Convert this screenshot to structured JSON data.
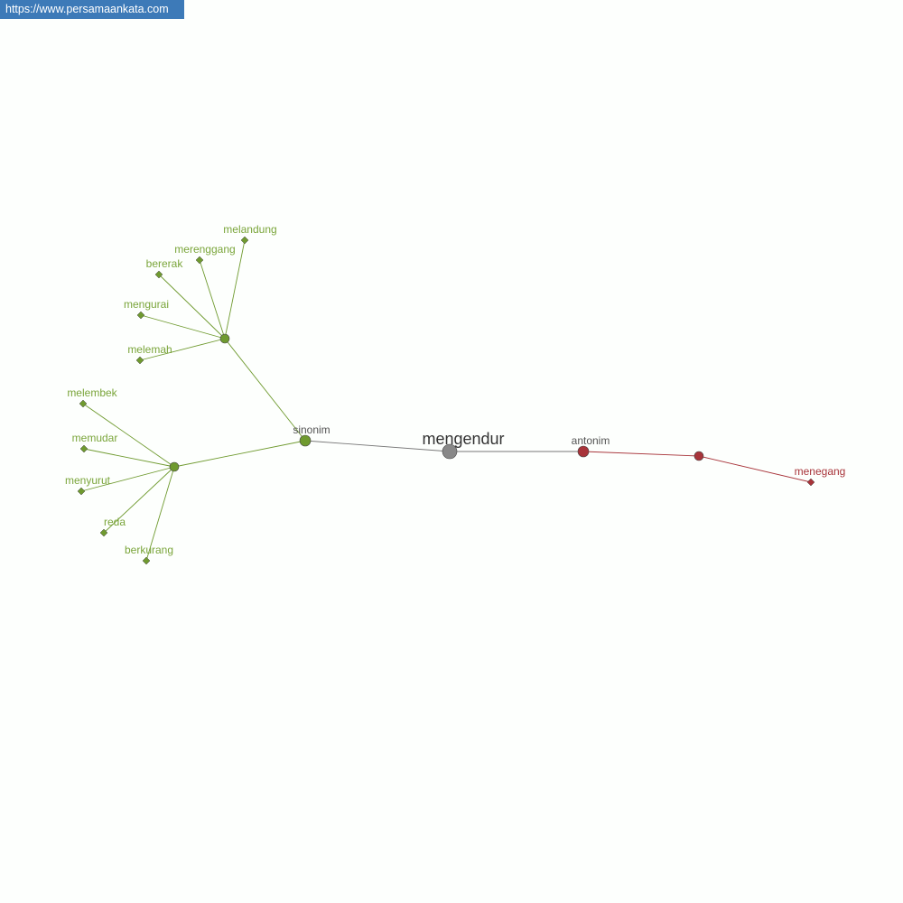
{
  "watermark": "https://www.persamaankata.com",
  "colors": {
    "synonym": "#6f9a2f",
    "synonym_label": "#7aa53a",
    "antonym": "#a8343a",
    "center": "#888888",
    "relation_label": "#555555"
  },
  "center": {
    "label": "mengendur"
  },
  "relations": {
    "synonym": "sinonim",
    "antonym": "antonim"
  },
  "synonym_groups": [
    [
      "melandung",
      "merenggang",
      "bererak",
      "mengurai",
      "melemah"
    ],
    [
      "melembek",
      "memudar",
      "menyurut",
      "reda",
      "berkurang"
    ]
  ],
  "antonyms": [
    "menegang"
  ]
}
